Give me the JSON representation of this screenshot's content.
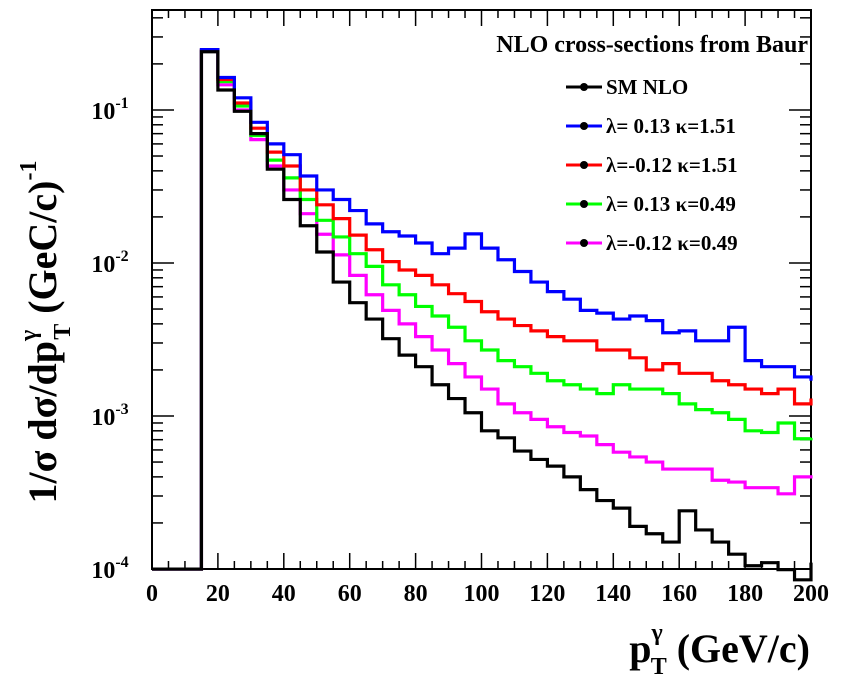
{
  "chart_data": {
    "type": "line",
    "step": true,
    "xscale": "linear",
    "yscale": "log",
    "xlim": [
      0,
      200
    ],
    "ylim": [
      0.0001,
      0.45
    ],
    "bin_width": 5,
    "xlabel": {
      "main": "p",
      "sup": "γ",
      "sub": "T",
      "rest": " (GeV/c)"
    },
    "ylabel": {
      "main": "1/σ dσ/dp",
      "sup": "γ",
      "sub": "T",
      "rest": " (GeC/c)",
      "exp": "-1"
    },
    "x_ticks": [
      0,
      20,
      40,
      60,
      80,
      100,
      120,
      140,
      160,
      180,
      200
    ],
    "x_tick_labels": [
      "0",
      "20",
      "40",
      "60",
      "80",
      "100",
      "120",
      "140",
      "160",
      "180",
      "200"
    ],
    "y_ticks": [
      {
        "value": 0.1,
        "base": "10",
        "exp": "-1"
      },
      {
        "value": 0.01,
        "base": "10",
        "exp": "-2"
      },
      {
        "value": 0.001,
        "base": "10",
        "exp": "-3"
      },
      {
        "value": 0.0001,
        "base": "10",
        "exp": "-4"
      }
    ],
    "legend_title": "NLO cross-sections from Baur",
    "legend_position": "top-right",
    "grid": false,
    "series": [
      {
        "name": "SM NLO",
        "color": "#000000",
        "x_start": 15,
        "values": [
          0.24,
          0.135,
          0.098,
          0.07,
          0.041,
          0.026,
          0.0175,
          0.0118,
          0.0075,
          0.0055,
          0.0043,
          0.0032,
          0.0025,
          0.0021,
          0.0016,
          0.0013,
          0.00105,
          0.0008,
          0.00072,
          0.00059,
          0.00052,
          0.00047,
          0.0004,
          0.00033,
          0.00028,
          0.00025,
          0.00019,
          0.00017,
          0.00015,
          0.00024,
          0.00018,
          0.00015,
          0.000125,
          0.000105,
          0.00011,
          9.9e-05,
          8.5e-05,
          0.00011
        ]
      },
      {
        "name": "λ= 0.13 κ=1.51",
        "color": "#0000ff",
        "x_start": 15,
        "values": [
          0.248,
          0.163,
          0.12,
          0.083,
          0.06,
          0.051,
          0.037,
          0.03,
          0.026,
          0.022,
          0.018,
          0.016,
          0.015,
          0.0135,
          0.0115,
          0.0125,
          0.0155,
          0.0125,
          0.0105,
          0.0088,
          0.0075,
          0.0065,
          0.0058,
          0.0049,
          0.0047,
          0.0043,
          0.0045,
          0.0042,
          0.0035,
          0.0036,
          0.0031,
          0.0031,
          0.0038,
          0.0023,
          0.0021,
          0.0021,
          0.0018,
          0.0017
        ]
      },
      {
        "name": "λ=-0.12 κ=1.51",
        "color": "#ff0000",
        "x_start": 15,
        "values": [
          0.246,
          0.158,
          0.111,
          0.076,
          0.053,
          0.043,
          0.03,
          0.024,
          0.0195,
          0.0152,
          0.0122,
          0.0102,
          0.009,
          0.0083,
          0.0072,
          0.0063,
          0.0056,
          0.0048,
          0.0043,
          0.0039,
          0.0036,
          0.0033,
          0.0031,
          0.0031,
          0.0027,
          0.0027,
          0.0024,
          0.002,
          0.0022,
          0.0019,
          0.0019,
          0.0017,
          0.0016,
          0.0015,
          0.0014,
          0.0015,
          0.0012,
          0.0013
        ]
      },
      {
        "name": "λ= 0.13 κ=0.49",
        "color": "#00ff00",
        "x_start": 15,
        "values": [
          0.245,
          0.153,
          0.106,
          0.068,
          0.047,
          0.036,
          0.026,
          0.019,
          0.0148,
          0.0115,
          0.0095,
          0.0072,
          0.0062,
          0.0052,
          0.0045,
          0.0038,
          0.0031,
          0.0027,
          0.0023,
          0.0021,
          0.0019,
          0.0017,
          0.0016,
          0.0015,
          0.0014,
          0.0016,
          0.0015,
          0.0015,
          0.0014,
          0.0012,
          0.0011,
          0.00105,
          0.00095,
          0.0008,
          0.00078,
          0.0009,
          0.00071,
          0.00072
        ]
      },
      {
        "name": "λ=-0.12 κ=0.49",
        "color": "#ff00ff",
        "x_start": 15,
        "values": [
          0.244,
          0.146,
          0.1,
          0.064,
          0.043,
          0.03,
          0.021,
          0.0154,
          0.0113,
          0.0083,
          0.0062,
          0.0049,
          0.004,
          0.0033,
          0.0027,
          0.0022,
          0.0018,
          0.0015,
          0.0012,
          0.00105,
          0.00095,
          0.00085,
          0.00078,
          0.00074,
          0.00065,
          0.00058,
          0.00054,
          0.0005,
          0.00045,
          0.00045,
          0.00045,
          0.00038,
          0.00037,
          0.00034,
          0.00034,
          0.00031,
          0.0004,
          0.00039
        ]
      }
    ]
  }
}
